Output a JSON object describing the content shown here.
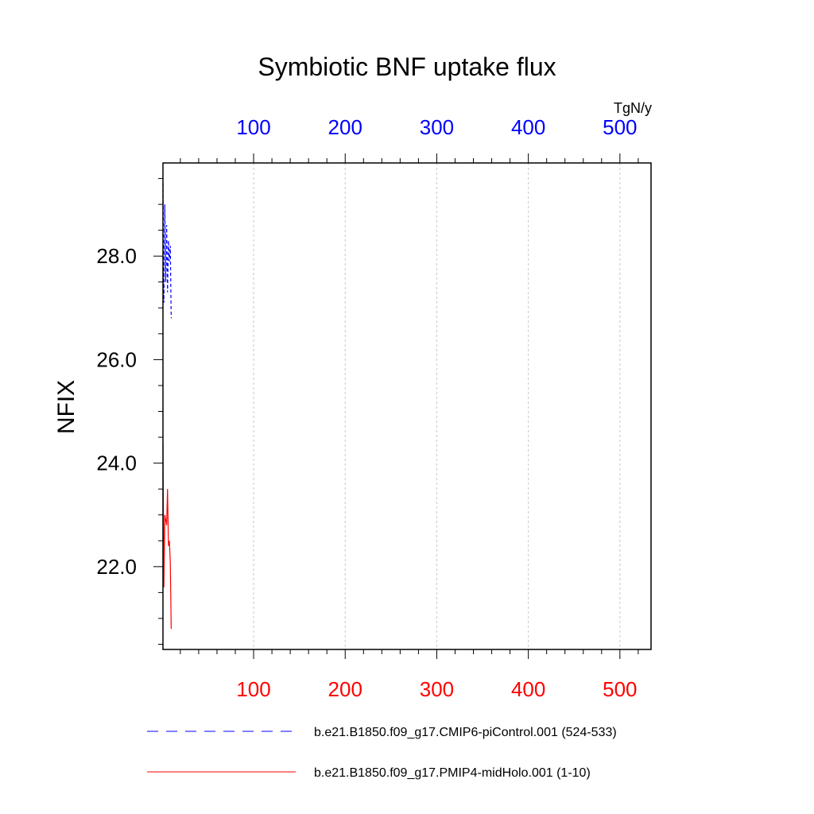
{
  "chart_data": {
    "type": "line",
    "title": "Symbiotic BNF uptake flux",
    "ylabel": "NFIX",
    "units": "TgN/y",
    "xlim": [
      1,
      534
    ],
    "ylim": [
      20.4,
      29.8
    ],
    "grid": "vertical dashed",
    "top_axis": {
      "color": "#0000ff",
      "ticks": [
        100,
        200,
        300,
        400,
        500
      ],
      "tick_labels": [
        "100",
        "200",
        "300",
        "400",
        "500"
      ],
      "range": [
        524,
        1057
      ]
    },
    "bottom_axis": {
      "color": "#ff0000",
      "ticks": [
        100,
        200,
        300,
        400,
        500
      ],
      "tick_labels": [
        "100",
        "200",
        "300",
        "400",
        "500"
      ],
      "range": [
        1,
        534
      ]
    },
    "y_ticks": [
      22,
      24,
      26,
      28
    ],
    "y_tick_labels": [
      "22.0",
      "24.0",
      "26.0",
      "28.0"
    ],
    "legend_position": "bottom",
    "series": [
      {
        "name": "b.e21.B1850.f09_g17.CMIP6-piControl.001 (524-533)",
        "color": "#0000ff",
        "style": "dashed",
        "x": [
          1,
          2,
          3,
          4,
          5,
          6,
          7,
          8,
          9,
          10
        ],
        "values": [
          29.4,
          27.1,
          29.0,
          27.5,
          28.6,
          27.3,
          28.3,
          27.9,
          28.2,
          26.8
        ]
      },
      {
        "name": "b.e21.B1850.f09_g17.PMIP4-midHolo.001 (1-10)",
        "color": "#ff0000",
        "style": "solid",
        "x": [
          1,
          2,
          3,
          4,
          5,
          6,
          7,
          8,
          9,
          10
        ],
        "values": [
          24.4,
          21.6,
          23.0,
          22.9,
          22.8,
          23.5,
          22.4,
          22.5,
          22.1,
          20.8
        ]
      }
    ]
  }
}
